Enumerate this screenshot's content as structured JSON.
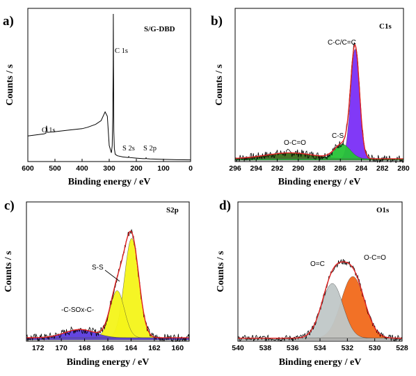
{
  "chart_data": [
    {
      "panel": "a)",
      "type": "line",
      "title": "S/G-DBD",
      "xlabel": "Binding energy / eV",
      "ylabel": "Counts / s",
      "xlim": [
        600,
        0
      ],
      "xticks": [
        "600",
        "500",
        "400",
        "300",
        "200",
        "100",
        "0"
      ],
      "annotations": [
        {
          "label": "O 1s",
          "x": 532,
          "y": 0.235
        },
        {
          "label": "C 1s",
          "x": 284.6,
          "y": 0.88
        },
        {
          "label": "S 2s",
          "x": 228,
          "y": 0.05
        },
        {
          "label": "S 2p",
          "x": 164,
          "y": 0.05
        }
      ],
      "series": [
        {
          "x": [
            600,
            580,
            560,
            540,
            533,
            531,
            528,
            500,
            450,
            400,
            380,
            350,
            330,
            315,
            307,
            300,
            292,
            289,
            287,
            285.5,
            284.8,
            284.2,
            283,
            281,
            278,
            270,
            250,
            230,
            228,
            226,
            200,
            175,
            166,
            164,
            162,
            150,
            100,
            50,
            0
          ],
          "y": [
            0.165,
            0.17,
            0.175,
            0.18,
            0.185,
            0.235,
            0.19,
            0.195,
            0.205,
            0.215,
            0.225,
            0.245,
            0.27,
            0.33,
            0.3,
            0.1,
            0.05,
            0.1,
            0.3,
            0.65,
            1.0,
            0.6,
            0.2,
            0.08,
            0.04,
            0.03,
            0.022,
            0.018,
            0.025,
            0.018,
            0.014,
            0.01,
            0.01,
            0.016,
            0.01,
            0.008,
            0.005,
            0.003,
            0.002
          ]
        }
      ]
    },
    {
      "panel": "b)",
      "type": "area",
      "title": "C1s",
      "xlabel": "Binding energy / eV",
      "ylabel": "Counts / s",
      "xlim": [
        296,
        280
      ],
      "xticks": [
        "296",
        "294",
        "292",
        "290",
        "288",
        "286",
        "284",
        "282",
        "280"
      ],
      "components": [
        {
          "label": "C-C/C=C",
          "center": 284.6,
          "sigma": 0.42,
          "height": 0.83,
          "color": "#7b2ff7"
        },
        {
          "label": "C-S",
          "center": 285.8,
          "sigma": 0.75,
          "height": 0.11,
          "color": "#27c437"
        },
        {
          "label": "O-C=O",
          "center": 290.8,
          "sigma": 2.3,
          "height": 0.045,
          "color": "#3c6e1a"
        }
      ],
      "envelope_color": "#e02020",
      "baseline": 0.05
    },
    {
      "panel": "c)",
      "type": "area",
      "title": "S2p",
      "xlabel": "Binding energy / eV",
      "ylabel": "Counts / s",
      "xlim": [
        173,
        159
      ],
      "xticks": [
        "172",
        "170",
        "168",
        "166",
        "164",
        "162",
        "160"
      ],
      "components": [
        {
          "label": "S-S",
          "center": 163.95,
          "sigma": 0.62,
          "height": 0.78,
          "color": "#f5f51a"
        },
        {
          "label": "S-S",
          "center": 165.2,
          "sigma": 0.62,
          "height": 0.37,
          "color": "#f5f51a"
        },
        {
          "label": "-C-SOx-C-",
          "center": 168.4,
          "sigma": 1.3,
          "height": 0.065,
          "color": "#5b3ce0"
        }
      ],
      "envelope_color": "#e02020",
      "baseline": 0.08
    },
    {
      "panel": "d)",
      "type": "area",
      "title": "O1s",
      "xlabel": "Binding energy / eV",
      "ylabel": "Counts / s",
      "xlim": [
        540,
        528
      ],
      "xticks": [
        "540",
        "538",
        "536",
        "534",
        "532",
        "530",
        "528"
      ],
      "components": [
        {
          "label": "O=C",
          "center": 533.1,
          "sigma": 0.78,
          "height": 0.55,
          "color": "#c0c8c8"
        },
        {
          "label": "O-C=O",
          "center": 531.6,
          "sigma": 0.85,
          "height": 0.62,
          "color": "#f26a1b"
        }
      ],
      "envelope_color": "#e02020",
      "baseline": 0.08
    }
  ]
}
